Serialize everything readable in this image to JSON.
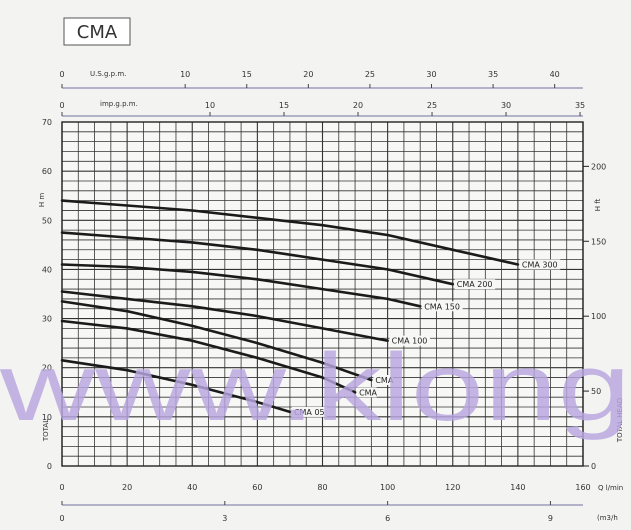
{
  "chart_data": {
    "type": "line",
    "title": "CMA",
    "watermark": "www.klong",
    "grid": true,
    "x": {
      "ticks": [
        0,
        20,
        40,
        60,
        80,
        100,
        120,
        140,
        160
      ],
      "label": "Q l/min",
      "lim": [
        0,
        160
      ]
    },
    "x_m3h": {
      "ticks": [
        "0",
        "3",
        "6",
        "9"
      ],
      "values": [
        0,
        3,
        6,
        9
      ],
      "label": "(m3/h",
      "lim": [
        0,
        9.6
      ]
    },
    "x_us_gpm": {
      "ticks": [
        "0",
        "10",
        "15",
        "20",
        "25",
        "30",
        "35",
        "40"
      ],
      "values": [
        0,
        10,
        15,
        20,
        25,
        30,
        35,
        40
      ],
      "label": "U.S.g.p.m.",
      "lim": [
        0,
        42.3
      ]
    },
    "x_imp_gpm": {
      "ticks": [
        "0",
        "10",
        "15",
        "20",
        "25",
        "30",
        "35"
      ],
      "values": [
        0,
        10,
        15,
        20,
        25,
        30,
        35
      ],
      "label": "imp.g.p.m.",
      "lim": [
        0,
        35.2
      ]
    },
    "y_left": {
      "ticks": [
        0,
        10,
        20,
        30,
        40,
        50,
        60,
        70
      ],
      "label": "H m",
      "side_label": "TOTAL",
      "lim": [
        0,
        70
      ]
    },
    "y_right": {
      "ticks": [
        0,
        50,
        100,
        150,
        200
      ],
      "label": "H ft",
      "side_label": "TOTAL HEAD",
      "lim": [
        0,
        229.6
      ]
    },
    "series": [
      {
        "name": "CMA 300",
        "x": [
          0,
          20,
          40,
          60,
          80,
          100,
          120,
          140
        ],
        "y": [
          54,
          53,
          52,
          50.5,
          49,
          47,
          44,
          41
        ]
      },
      {
        "name": "CMA 200",
        "x": [
          0,
          20,
          40,
          60,
          80,
          100,
          120
        ],
        "y": [
          47.5,
          46.5,
          45.5,
          44,
          42,
          40,
          37
        ]
      },
      {
        "name": "CMA 150",
        "x": [
          0,
          20,
          40,
          60,
          80,
          100,
          110
        ],
        "y": [
          41,
          40.5,
          39.5,
          38,
          36,
          34,
          32.5
        ]
      },
      {
        "name": "CMA 100",
        "x": [
          0,
          20,
          40,
          60,
          80,
          100
        ],
        "y": [
          35.5,
          34,
          32.5,
          30.5,
          28,
          25.5
        ]
      },
      {
        "name": "CMA",
        "x": [
          0,
          20,
          40,
          60,
          80,
          95
        ],
        "y": [
          33.5,
          31.5,
          28.5,
          25,
          21,
          17.5
        ]
      },
      {
        "name": "CMA",
        "x": [
          0,
          20,
          40,
          60,
          80,
          90
        ],
        "y": [
          29.5,
          28,
          25.5,
          22,
          18,
          15
        ]
      },
      {
        "name": "CMA 05",
        "x": [
          0,
          20,
          40,
          60,
          70
        ],
        "y": [
          21.5,
          19.5,
          16.5,
          13,
          11
        ]
      }
    ]
  }
}
